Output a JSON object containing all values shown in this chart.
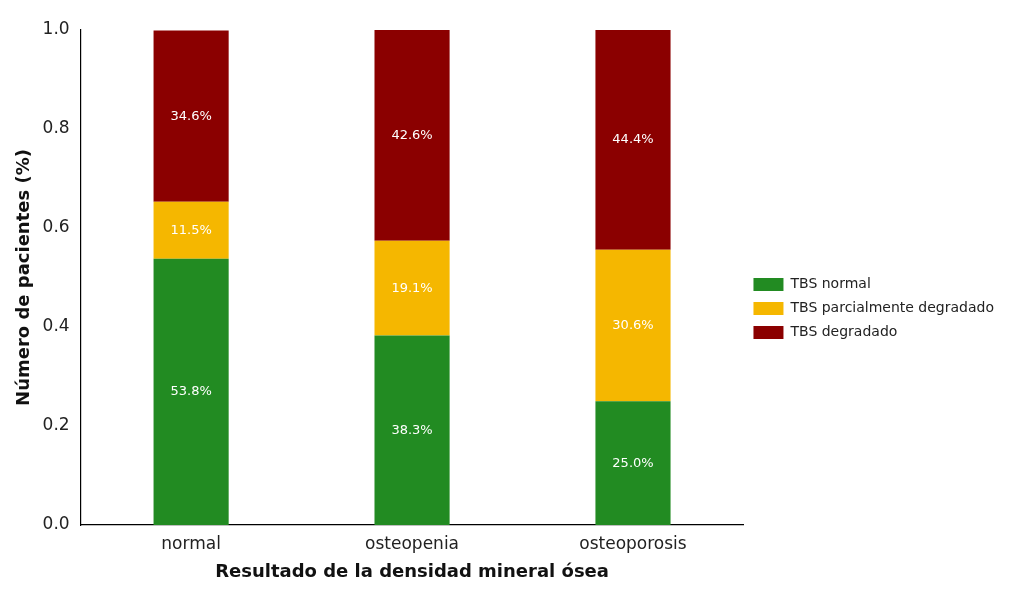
{
  "chart_data": {
    "type": "bar",
    "stacked": true,
    "xlabel": "Resultado de la densidad mineral ósea",
    "ylabel": "Número de pacientes (%)",
    "categories": [
      "normal",
      "osteopenia",
      "osteoporosis"
    ],
    "ylim": [
      0,
      1.0
    ],
    "yticks": [
      {
        "value": 0,
        "label": "0.0"
      },
      {
        "value": 0.2,
        "label": "0.2"
      },
      {
        "value": 0.4,
        "label": "0.4"
      },
      {
        "value": 0.6,
        "label": "0.6"
      },
      {
        "value": 0.8,
        "label": "0.8"
      },
      {
        "value": 1.0,
        "label": "1.0"
      }
    ],
    "legend": "right",
    "series": [
      {
        "name": "TBS normal",
        "color": "#228b22",
        "values": [
          0.538,
          0.383,
          0.25
        ],
        "value_labels": [
          "53.8%",
          "38.3%",
          "25.0%"
        ]
      },
      {
        "name": "TBS parcialmente degradado",
        "color": "#f5b700",
        "values": [
          0.115,
          0.191,
          0.306
        ],
        "value_labels": [
          "11.5%",
          "19.1%",
          "30.6%"
        ]
      },
      {
        "name": "TBS degradado",
        "color": "#8b0000",
        "values": [
          0.346,
          0.426,
          0.444
        ],
        "value_labels": [
          "34.6%",
          "42.6%",
          "44.4%"
        ]
      }
    ]
  }
}
